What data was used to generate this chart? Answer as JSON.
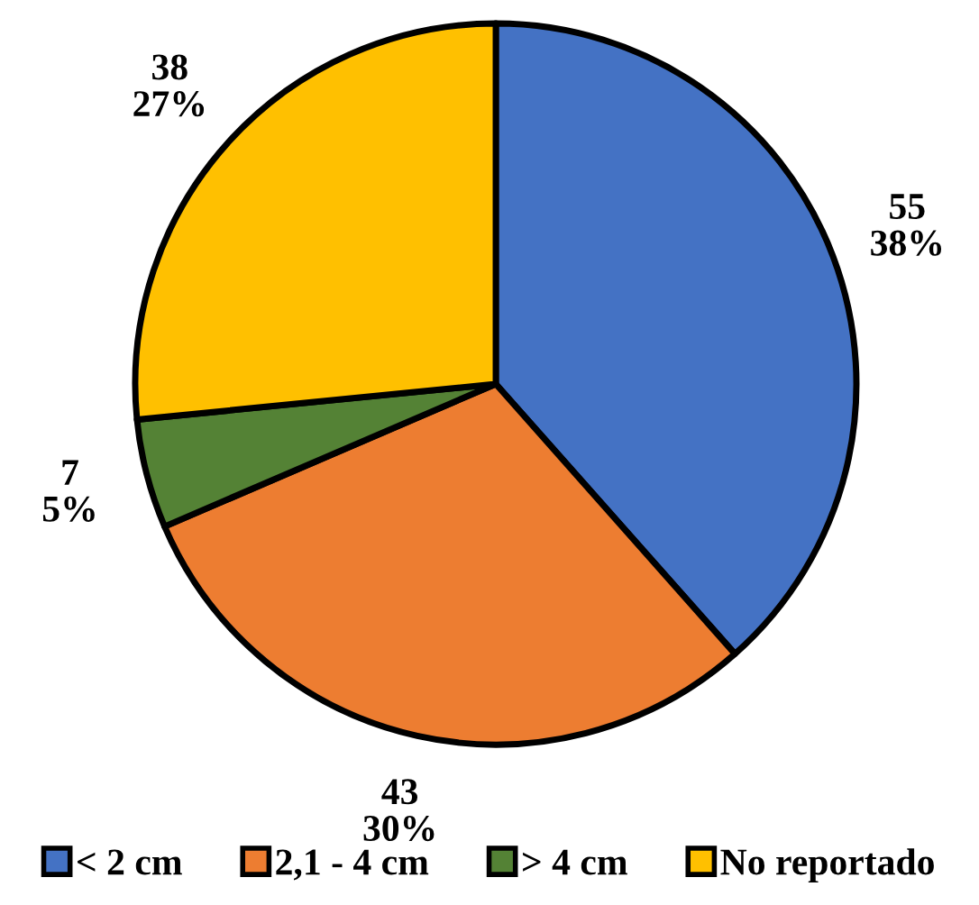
{
  "chart_data": {
    "type": "pie",
    "categories": [
      "< 2 cm",
      "2,1 - 4 cm",
      "> 4 cm",
      "No reportado"
    ],
    "values": [
      55,
      43,
      7,
      38
    ],
    "colors": [
      "#4472c4",
      "#ed7d31",
      "#548235",
      "#ffc000"
    ],
    "value_labels": [
      "55\n38%",
      "43\n30%",
      "7\n5%",
      "38\n27%"
    ],
    "legend": "bottom"
  }
}
